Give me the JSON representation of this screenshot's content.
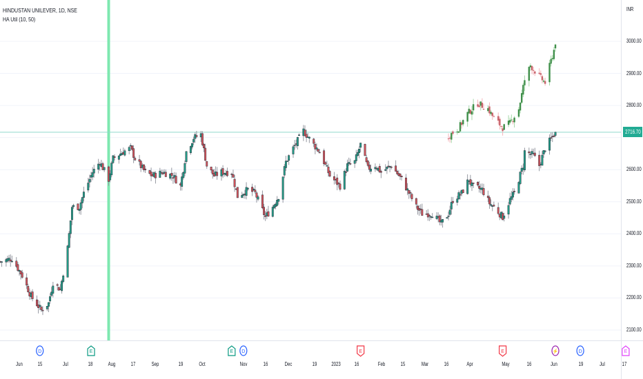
{
  "header": {
    "symbol_line": "HINDUSTAN UNILEVER, 1D, NSE",
    "indicator_line": "HA Util (10, 50)"
  },
  "price_axis": {
    "currency": "INR",
    "ticks": [
      "3000.00",
      "2900.00",
      "2800.00",
      "2600.00",
      "2500.00",
      "2400.00",
      "2300.00",
      "2200.00",
      "2100.00"
    ],
    "last_price_label": "2716.70"
  },
  "time_axis": {
    "ticks": [
      "Jun",
      "15",
      "Jul",
      "18",
      "Aug",
      "17",
      "Sep",
      "19",
      "Oct",
      "Nov",
      "16",
      "Dec",
      "19",
      "2023",
      "16",
      "Feb",
      "15",
      "Mar",
      "16",
      "Apr",
      "May",
      "16",
      "Jun",
      "19",
      "Jul",
      "17"
    ]
  },
  "colors": {
    "up": "#22a08a",
    "down": "#d9545c",
    "ha_up": "#3f8f4a",
    "ha_down": "#c8626a",
    "vertical_marker": "#7ee8b0",
    "last_price_line": "#8fd9cc",
    "last_price_bg": "#22ab94"
  },
  "events": [
    {
      "date": "2022-06-15",
      "letter": "D",
      "kind": "dividend",
      "color": "#2962ff"
    },
    {
      "date": "2022-07-20",
      "letter": "E",
      "kind": "earnings",
      "color": "#089981"
    },
    {
      "date": "2022-10-24",
      "letter": "E",
      "kind": "earnings",
      "color": "#089981"
    },
    {
      "date": "2022-11-01",
      "letter": "D",
      "kind": "dividend",
      "color": "#2962ff"
    },
    {
      "date": "2023-01-20",
      "letter": "E",
      "kind": "earnings",
      "color": "#f23645"
    },
    {
      "date": "2023-04-27",
      "letter": "E",
      "kind": "earnings",
      "color": "#f23645"
    },
    {
      "date": "2023-06-02",
      "letter": "⚡",
      "kind": "split",
      "color": "#9c27b0"
    },
    {
      "date": "2023-06-19",
      "letter": "D",
      "kind": "dividend",
      "color": "#2962ff"
    },
    {
      "date": "2023-07-20",
      "letter": "E",
      "kind": "earnings",
      "color": "#e040fb"
    }
  ],
  "chart_data": {
    "type": "candlestick",
    "symbol": "HINDUSTAN UNILEVER",
    "interval": "1D",
    "y_range": [
      2080,
      3040
    ],
    "last_price": 2716.7,
    "vertical_marker_date": "2022-08-01",
    "series": [
      {
        "kind": "price",
        "closes": [
          [
            "2022-05-19",
            2313
          ],
          [
            "2022-05-27",
            2323
          ],
          [
            "2022-06-03",
            2270
          ],
          [
            "2022-06-09",
            2205
          ],
          [
            "2022-06-16",
            2162
          ],
          [
            "2022-06-21",
            2184
          ],
          [
            "2022-06-24",
            2248
          ],
          [
            "2022-06-29",
            2227
          ],
          [
            "2022-07-04",
            2356
          ],
          [
            "2022-07-07",
            2484
          ],
          [
            "2022-07-12",
            2484
          ],
          [
            "2022-07-15",
            2527
          ],
          [
            "2022-07-21",
            2592
          ],
          [
            "2022-07-26",
            2624
          ],
          [
            "2022-08-01",
            2570
          ],
          [
            "2022-08-04",
            2635
          ],
          [
            "2022-08-11",
            2656
          ],
          [
            "2022-08-16",
            2667
          ],
          [
            "2022-08-19",
            2635
          ],
          [
            "2022-08-26",
            2592
          ],
          [
            "2022-08-31",
            2581
          ],
          [
            "2022-09-07",
            2592
          ],
          [
            "2022-09-14",
            2581
          ],
          [
            "2022-09-19",
            2549
          ],
          [
            "2022-09-23",
            2656
          ],
          [
            "2022-09-28",
            2699
          ],
          [
            "2022-10-03",
            2710
          ],
          [
            "2022-10-07",
            2613
          ],
          [
            "2022-10-12",
            2581
          ],
          [
            "2022-10-17",
            2592
          ],
          [
            "2022-10-24",
            2592
          ],
          [
            "2022-10-28",
            2517
          ],
          [
            "2022-11-04",
            2538
          ],
          [
            "2022-11-09",
            2527
          ],
          [
            "2022-11-16",
            2452
          ],
          [
            "2022-11-21",
            2484
          ],
          [
            "2022-11-25",
            2517
          ],
          [
            "2022-11-30",
            2624
          ],
          [
            "2022-12-05",
            2667
          ],
          [
            "2022-12-12",
            2721
          ],
          [
            "2022-12-19",
            2678
          ],
          [
            "2022-12-23",
            2656
          ],
          [
            "2022-12-30",
            2581
          ],
          [
            "2023-01-06",
            2549
          ],
          [
            "2023-01-11",
            2613
          ],
          [
            "2023-01-16",
            2624
          ],
          [
            "2023-01-20",
            2678
          ],
          [
            "2023-01-25",
            2603
          ],
          [
            "2023-01-30",
            2613
          ],
          [
            "2023-02-03",
            2592
          ],
          [
            "2023-02-10",
            2613
          ],
          [
            "2023-02-17",
            2570
          ],
          [
            "2023-02-22",
            2527
          ],
          [
            "2023-02-27",
            2484
          ],
          [
            "2023-03-03",
            2463
          ],
          [
            "2023-03-10",
            2463
          ],
          [
            "2023-03-16",
            2431
          ],
          [
            "2023-03-21",
            2463
          ],
          [
            "2023-03-24",
            2506
          ],
          [
            "2023-03-30",
            2527
          ],
          [
            "2023-04-04",
            2570
          ],
          [
            "2023-04-06",
            2549
          ],
          [
            "2023-04-13",
            2538
          ],
          [
            "2023-04-18",
            2495
          ],
          [
            "2023-04-21",
            2484
          ],
          [
            "2023-04-27",
            2452
          ],
          [
            "2023-05-02",
            2506
          ],
          [
            "2023-05-05",
            2527
          ],
          [
            "2023-05-11",
            2613
          ],
          [
            "2023-05-12",
            2656
          ],
          [
            "2023-05-18",
            2645
          ],
          [
            "2023-05-22",
            2613
          ],
          [
            "2023-05-26",
            2667
          ],
          [
            "2023-06-02",
            2716.7
          ]
        ]
      },
      {
        "kind": "heikin-ashi overlay",
        "name": "HA Util (10, 50)",
        "closes": [
          [
            "2023-03-21",
            2705
          ],
          [
            "2023-03-28",
            2730
          ],
          [
            "2023-04-03",
            2775
          ],
          [
            "2023-04-10",
            2807
          ],
          [
            "2023-04-17",
            2790
          ],
          [
            "2023-04-21",
            2760
          ],
          [
            "2023-04-27",
            2731
          ],
          [
            "2023-05-02",
            2745
          ],
          [
            "2023-05-08",
            2790
          ],
          [
            "2023-05-12",
            2880
          ],
          [
            "2023-05-16",
            2925
          ],
          [
            "2023-05-22",
            2890
          ],
          [
            "2023-05-26",
            2871
          ],
          [
            "2023-06-02",
            2990
          ]
        ]
      }
    ]
  }
}
